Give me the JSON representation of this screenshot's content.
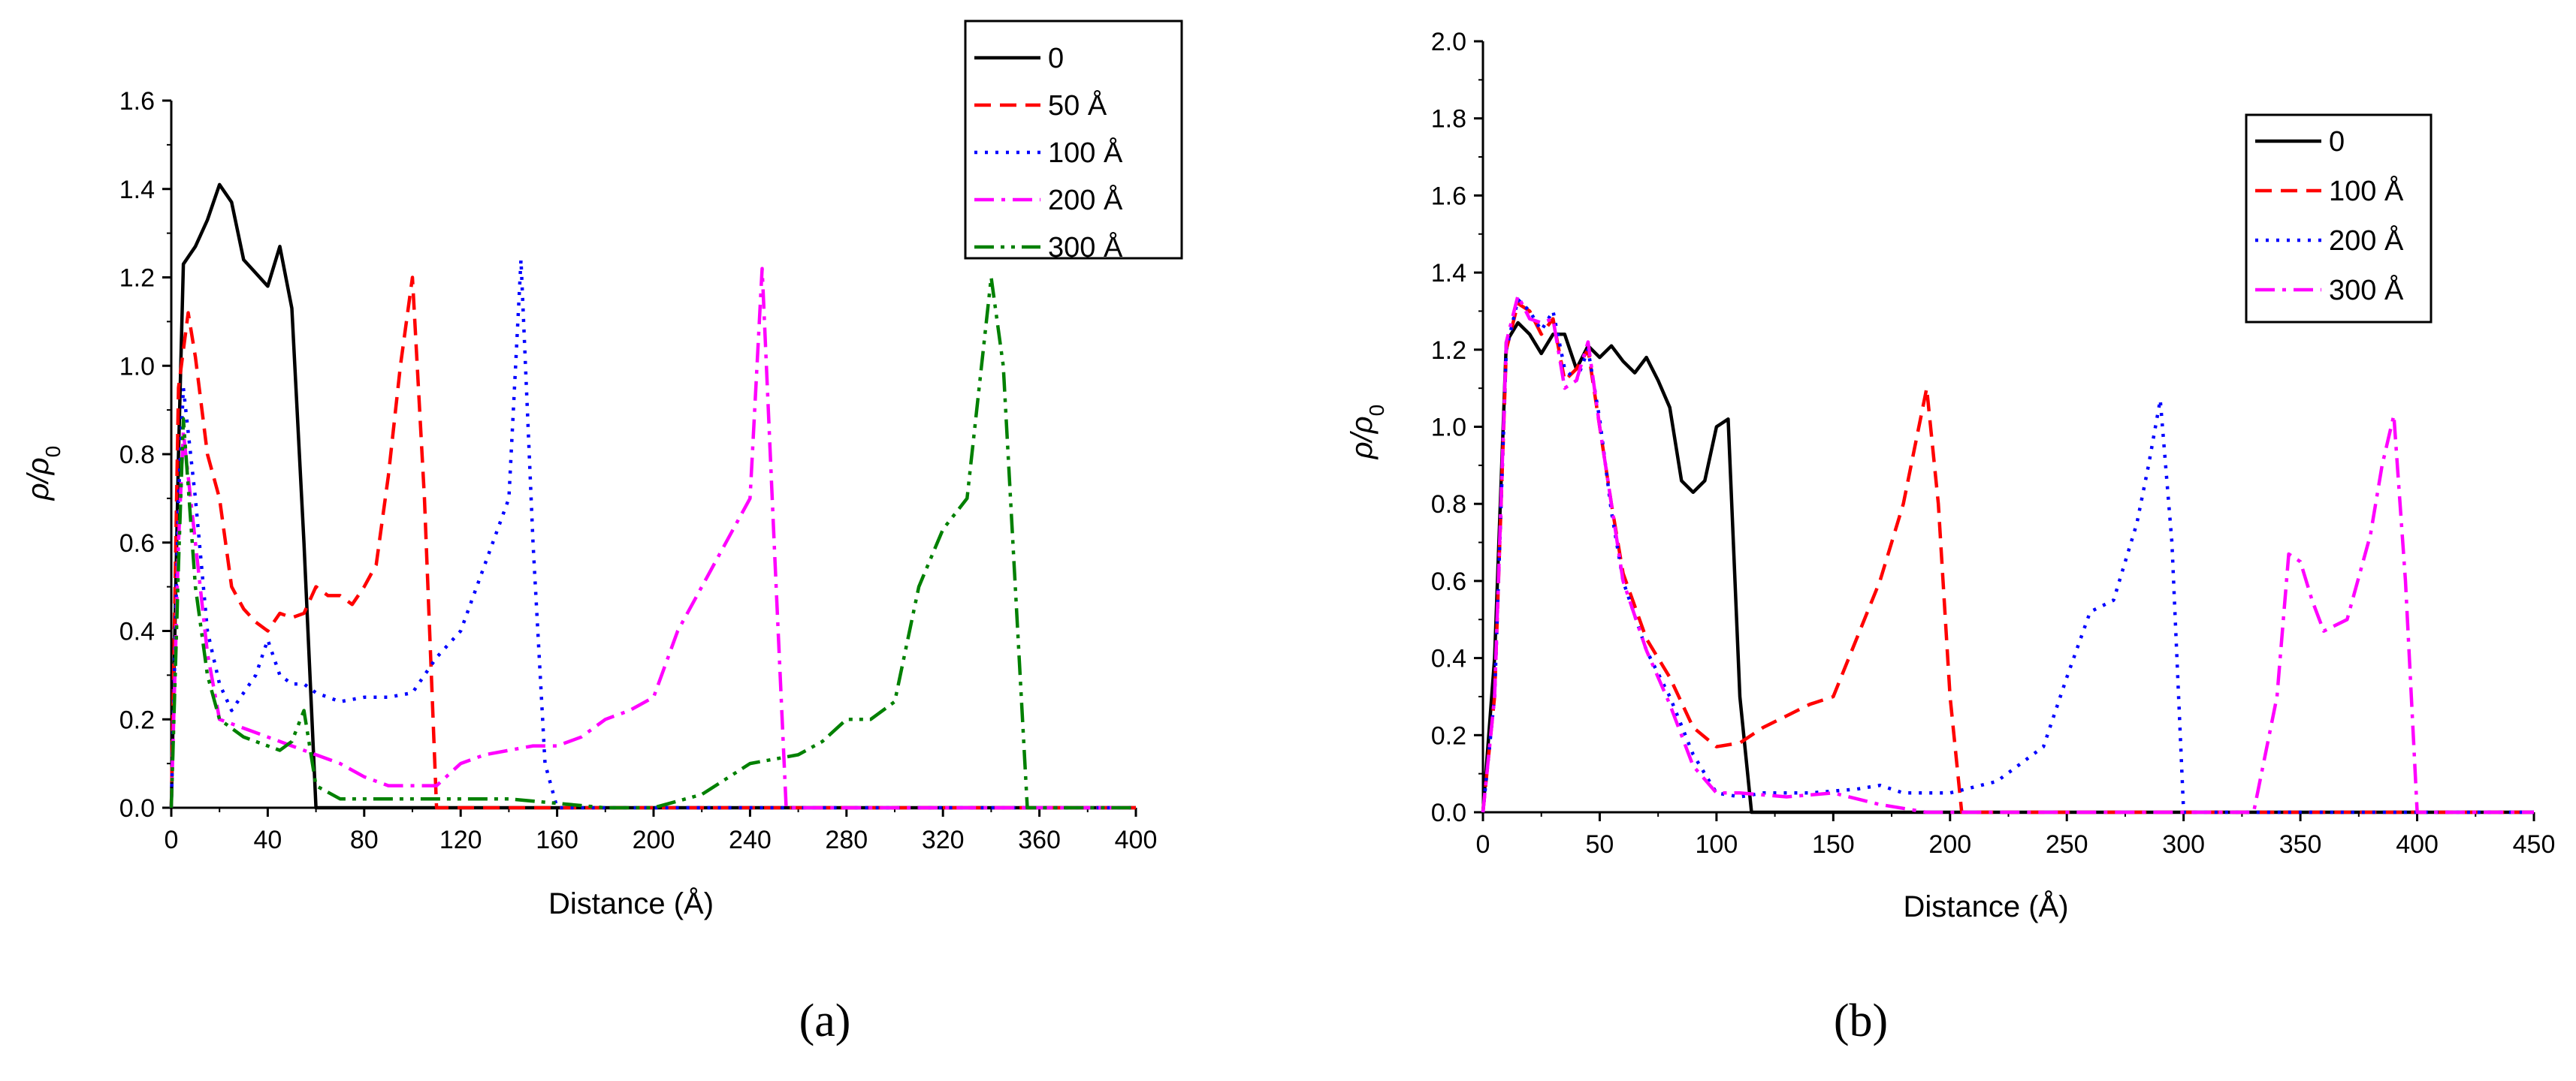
{
  "chart_data": [
    {
      "type": "line",
      "panel": "a",
      "caption": "(a)",
      "xlabel": "Distance (Å)",
      "ylabel": "ρ/ρ",
      "ylabel_sub": "0",
      "xlim": [
        0,
        400
      ],
      "ylim": [
        0,
        1.6
      ],
      "xticks": [
        "0",
        "40",
        "80",
        "120",
        "160",
        "200",
        "240",
        "280",
        "320",
        "360",
        "400"
      ],
      "yticks": [
        "0.0",
        "0.2",
        "0.4",
        "0.6",
        "0.8",
        "1.0",
        "1.2",
        "1.4",
        "1.6"
      ],
      "legend_position": "top-right",
      "series": [
        {
          "name": "0",
          "color": "#000000",
          "dash": "solid",
          "x": [
            0,
            3,
            5,
            10,
            15,
            20,
            25,
            30,
            35,
            40,
            45,
            50,
            55,
            60,
            400
          ],
          "y": [
            0.0,
            0.8,
            1.23,
            1.27,
            1.33,
            1.41,
            1.37,
            1.24,
            1.21,
            1.18,
            1.27,
            1.13,
            0.6,
            0.0,
            0.0
          ]
        },
        {
          "name": "50 Å",
          "color": "#ff0000",
          "dash": "dashed",
          "x": [
            0,
            3,
            7,
            10,
            15,
            20,
            25,
            30,
            35,
            40,
            45,
            50,
            55,
            60,
            65,
            70,
            75,
            80,
            85,
            90,
            95,
            100,
            105,
            110,
            400
          ],
          "y": [
            0.0,
            0.95,
            1.12,
            1.02,
            0.8,
            0.7,
            0.5,
            0.45,
            0.42,
            0.4,
            0.44,
            0.43,
            0.44,
            0.5,
            0.48,
            0.48,
            0.46,
            0.5,
            0.55,
            0.75,
            1.0,
            1.2,
            0.7,
            0.0,
            0.0
          ]
        },
        {
          "name": "100 Å",
          "color": "#0000ff",
          "dash": "dotted",
          "x": [
            0,
            3,
            5,
            10,
            15,
            20,
            25,
            30,
            35,
            40,
            45,
            50,
            55,
            60,
            70,
            80,
            90,
            100,
            110,
            120,
            130,
            140,
            145,
            150,
            155,
            160,
            400
          ],
          "y": [
            0.0,
            0.7,
            0.95,
            0.7,
            0.4,
            0.28,
            0.22,
            0.26,
            0.3,
            0.38,
            0.3,
            0.28,
            0.28,
            0.26,
            0.24,
            0.25,
            0.25,
            0.26,
            0.34,
            0.4,
            0.55,
            0.7,
            1.24,
            0.6,
            0.1,
            0.0,
            0.0
          ]
        },
        {
          "name": "200 Å",
          "color": "#ff00ff",
          "dash": "dashdot",
          "x": [
            0,
            3,
            5,
            10,
            15,
            20,
            25,
            30,
            35,
            40,
            50,
            60,
            70,
            80,
            90,
            100,
            110,
            120,
            130,
            140,
            150,
            160,
            170,
            180,
            190,
            200,
            210,
            220,
            230,
            240,
            245,
            250,
            255,
            400
          ],
          "y": [
            0.0,
            0.6,
            0.85,
            0.6,
            0.35,
            0.2,
            0.19,
            0.18,
            0.17,
            0.16,
            0.14,
            0.12,
            0.1,
            0.07,
            0.05,
            0.05,
            0.05,
            0.1,
            0.12,
            0.13,
            0.14,
            0.14,
            0.16,
            0.2,
            0.22,
            0.25,
            0.4,
            0.5,
            0.6,
            0.7,
            1.22,
            0.6,
            0.0,
            0.0
          ]
        },
        {
          "name": "300 Å",
          "color": "#008000",
          "dash": "dashdotdot",
          "x": [
            0,
            3,
            5,
            10,
            15,
            20,
            25,
            30,
            35,
            40,
            45,
            50,
            55,
            60,
            70,
            80,
            100,
            120,
            140,
            160,
            180,
            200,
            220,
            240,
            260,
            270,
            280,
            290,
            300,
            310,
            320,
            330,
            340,
            345,
            350,
            355,
            400
          ],
          "y": [
            0.0,
            0.55,
            0.88,
            0.5,
            0.3,
            0.2,
            0.18,
            0.16,
            0.15,
            0.14,
            0.13,
            0.15,
            0.22,
            0.05,
            0.02,
            0.02,
            0.02,
            0.02,
            0.02,
            0.01,
            0.0,
            0.0,
            0.03,
            0.1,
            0.12,
            0.15,
            0.2,
            0.2,
            0.24,
            0.5,
            0.63,
            0.7,
            1.2,
            1.0,
            0.5,
            0.0,
            0.0
          ]
        }
      ]
    },
    {
      "type": "line",
      "panel": "b",
      "caption": "(b)",
      "xlabel": "Distance (Å)",
      "ylabel": "ρ/ρ",
      "ylabel_sub": "0",
      "xlim": [
        0,
        450
      ],
      "ylim": [
        0,
        2.0
      ],
      "xticks": [
        "0",
        "50",
        "100",
        "150",
        "200",
        "250",
        "300",
        "350",
        "400",
        "450"
      ],
      "yticks": [
        "0.0",
        "0.2",
        "0.4",
        "0.6",
        "0.8",
        "1.0",
        "1.2",
        "1.4",
        "1.6",
        "1.8",
        "2.0"
      ],
      "legend_position": "top-right",
      "series": [
        {
          "name": "0",
          "color": "#000000",
          "dash": "solid",
          "x": [
            0,
            5,
            10,
            15,
            20,
            25,
            30,
            35,
            40,
            45,
            50,
            55,
            60,
            65,
            70,
            75,
            80,
            85,
            90,
            95,
            100,
            105,
            110,
            115,
            450
          ],
          "y": [
            0.0,
            0.4,
            1.22,
            1.27,
            1.24,
            1.19,
            1.24,
            1.24,
            1.15,
            1.21,
            1.18,
            1.21,
            1.17,
            1.14,
            1.18,
            1.12,
            1.05,
            0.86,
            0.83,
            0.86,
            1.0,
            1.02,
            0.3,
            0.0,
            0.0
          ]
        },
        {
          "name": "100 Å",
          "color": "#ff0000",
          "dash": "dashed",
          "x": [
            0,
            5,
            10,
            15,
            20,
            25,
            30,
            35,
            40,
            45,
            50,
            55,
            60,
            70,
            80,
            90,
            100,
            110,
            120,
            130,
            140,
            150,
            160,
            170,
            180,
            185,
            190,
            195,
            200,
            205,
            450
          ],
          "y": [
            0.0,
            0.3,
            1.2,
            1.32,
            1.3,
            1.24,
            1.28,
            1.12,
            1.15,
            1.2,
            1.0,
            0.8,
            0.62,
            0.45,
            0.35,
            0.22,
            0.17,
            0.18,
            0.22,
            0.25,
            0.28,
            0.3,
            0.45,
            0.6,
            0.8,
            0.95,
            1.1,
            0.8,
            0.3,
            0.0,
            0.0
          ]
        },
        {
          "name": "200 Å",
          "color": "#0000ff",
          "dash": "dotted",
          "x": [
            0,
            5,
            10,
            15,
            20,
            25,
            30,
            35,
            40,
            45,
            50,
            55,
            60,
            70,
            80,
            90,
            100,
            110,
            120,
            140,
            160,
            170,
            180,
            200,
            220,
            240,
            250,
            260,
            270,
            280,
            285,
            290,
            295,
            300,
            450
          ],
          "y": [
            0.0,
            0.3,
            1.2,
            1.33,
            1.3,
            1.25,
            1.3,
            1.15,
            1.12,
            1.2,
            1.02,
            0.78,
            0.6,
            0.42,
            0.3,
            0.15,
            0.05,
            0.04,
            0.05,
            0.05,
            0.06,
            0.07,
            0.05,
            0.05,
            0.08,
            0.17,
            0.35,
            0.52,
            0.55,
            0.75,
            0.9,
            1.07,
            0.7,
            0.0,
            0.0
          ]
        },
        {
          "name": "300 Å",
          "color": "#ff00ff",
          "dash": "dashdot",
          "x": [
            0,
            5,
            10,
            15,
            20,
            25,
            30,
            35,
            40,
            45,
            50,
            55,
            60,
            70,
            80,
            90,
            100,
            110,
            130,
            150,
            170,
            190,
            210,
            250,
            300,
            320,
            330,
            340,
            345,
            350,
            355,
            360,
            370,
            380,
            385,
            390,
            395,
            400,
            450
          ],
          "y": [
            0.0,
            0.3,
            1.22,
            1.34,
            1.28,
            1.27,
            1.28,
            1.1,
            1.12,
            1.22,
            1.0,
            0.8,
            0.6,
            0.42,
            0.28,
            0.12,
            0.05,
            0.05,
            0.04,
            0.05,
            0.02,
            0.0,
            0.0,
            0.0,
            0.0,
            0.0,
            0.0,
            0.3,
            0.67,
            0.65,
            0.55,
            0.47,
            0.5,
            0.72,
            0.9,
            1.03,
            0.6,
            0.0,
            0.0
          ]
        }
      ]
    }
  ]
}
